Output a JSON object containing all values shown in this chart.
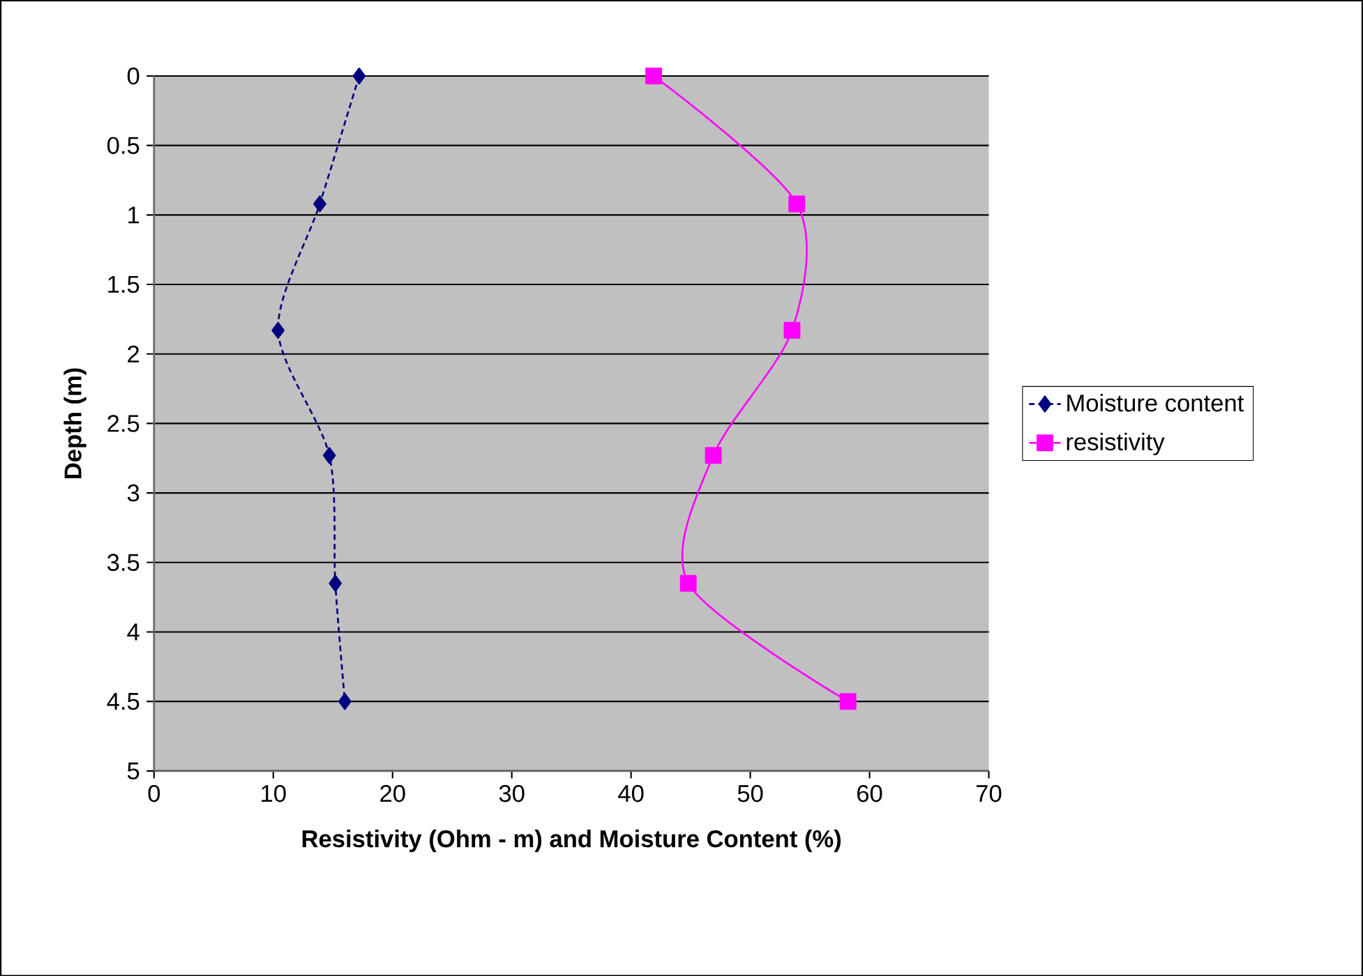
{
  "chart_data": {
    "type": "line",
    "xlabel": "Resistivity (Ohm - m) and Moisture Content (%)",
    "ylabel": "Depth (m)",
    "xlim": [
      0,
      70
    ],
    "xticks": [
      0,
      10,
      20,
      30,
      40,
      50,
      60,
      70
    ],
    "ylim": [
      5,
      0
    ],
    "yticks": [
      0,
      0.5,
      1,
      1.5,
      2,
      2.5,
      3,
      3.5,
      4,
      4.5,
      5
    ],
    "grid": "y",
    "legend": "right",
    "series": [
      {
        "name": "Moisture content",
        "color": "#000080",
        "marker": "diamond",
        "line_style": "dashed",
        "x": [
          17.2,
          13.9,
          10.4,
          14.7,
          15.2,
          16.0
        ],
        "values": [
          0,
          0.92,
          1.83,
          2.73,
          3.65,
          4.5
        ]
      },
      {
        "name": "resistivity",
        "color": "#ff00ff",
        "marker": "square",
        "line_style": "solid",
        "x": [
          41.9,
          53.9,
          53.5,
          46.9,
          44.8,
          58.2
        ],
        "values": [
          0,
          0.92,
          1.83,
          2.73,
          3.65,
          4.5
        ]
      }
    ]
  }
}
